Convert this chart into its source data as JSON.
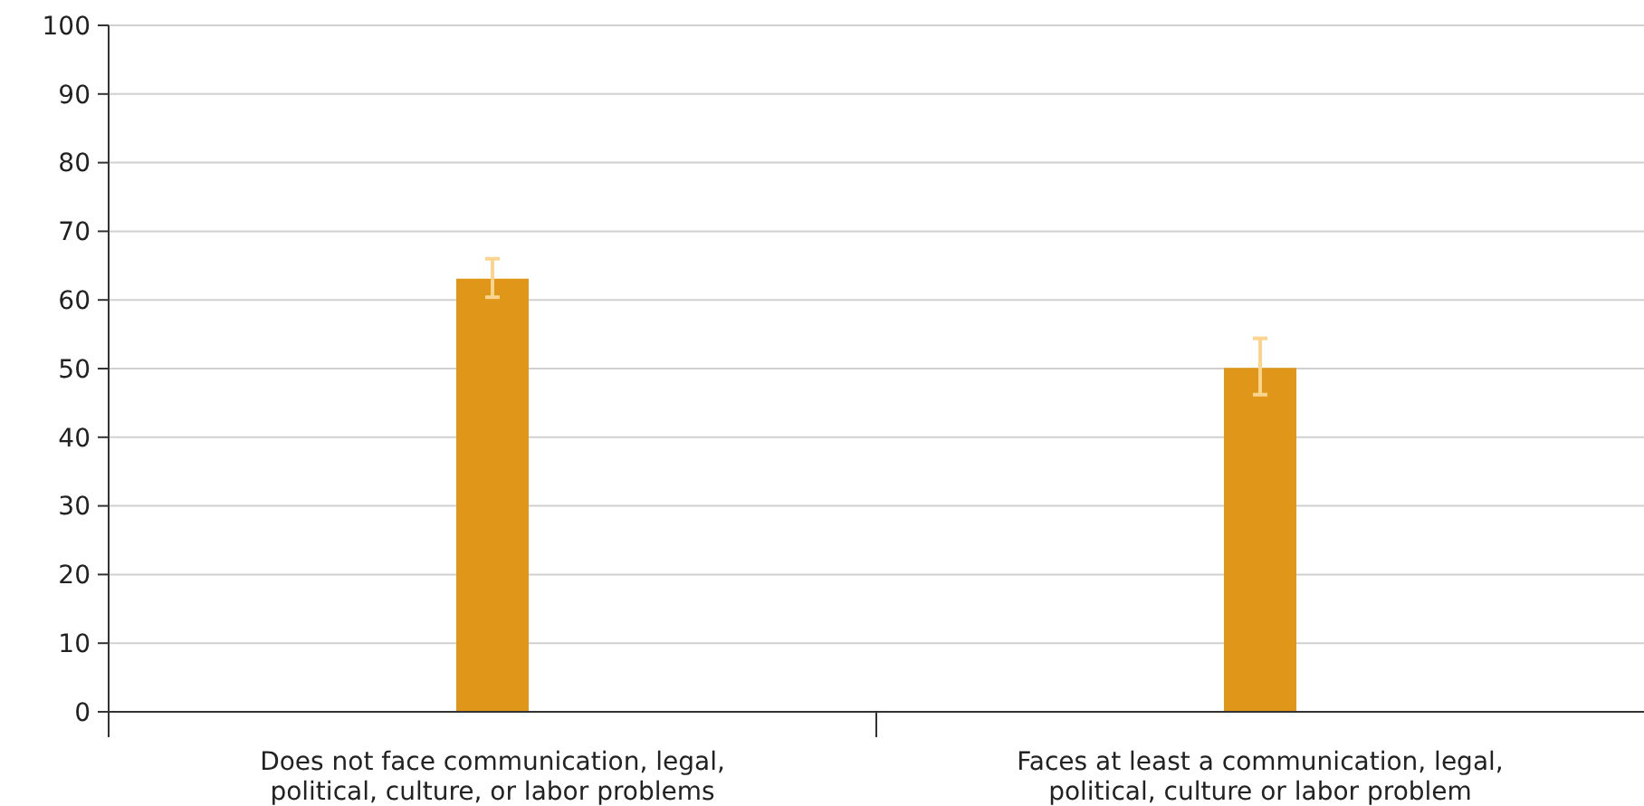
{
  "chart_data": {
    "type": "bar",
    "categories": [
      "Does not face communication, legal, political, culture, or labor problems",
      "Faces at least a communication, legal, political, culture or labor problem"
    ],
    "values": [
      63.1,
      50.1
    ],
    "errors": [
      [
        60.4,
        66.0
      ],
      [
        46.2,
        54.4
      ]
    ],
    "color": "#e09618",
    "ylim": [
      0,
      100
    ],
    "yticks": [
      0,
      10,
      20,
      30,
      40,
      50,
      60,
      70,
      80,
      90,
      100
    ],
    "grid": "y"
  }
}
